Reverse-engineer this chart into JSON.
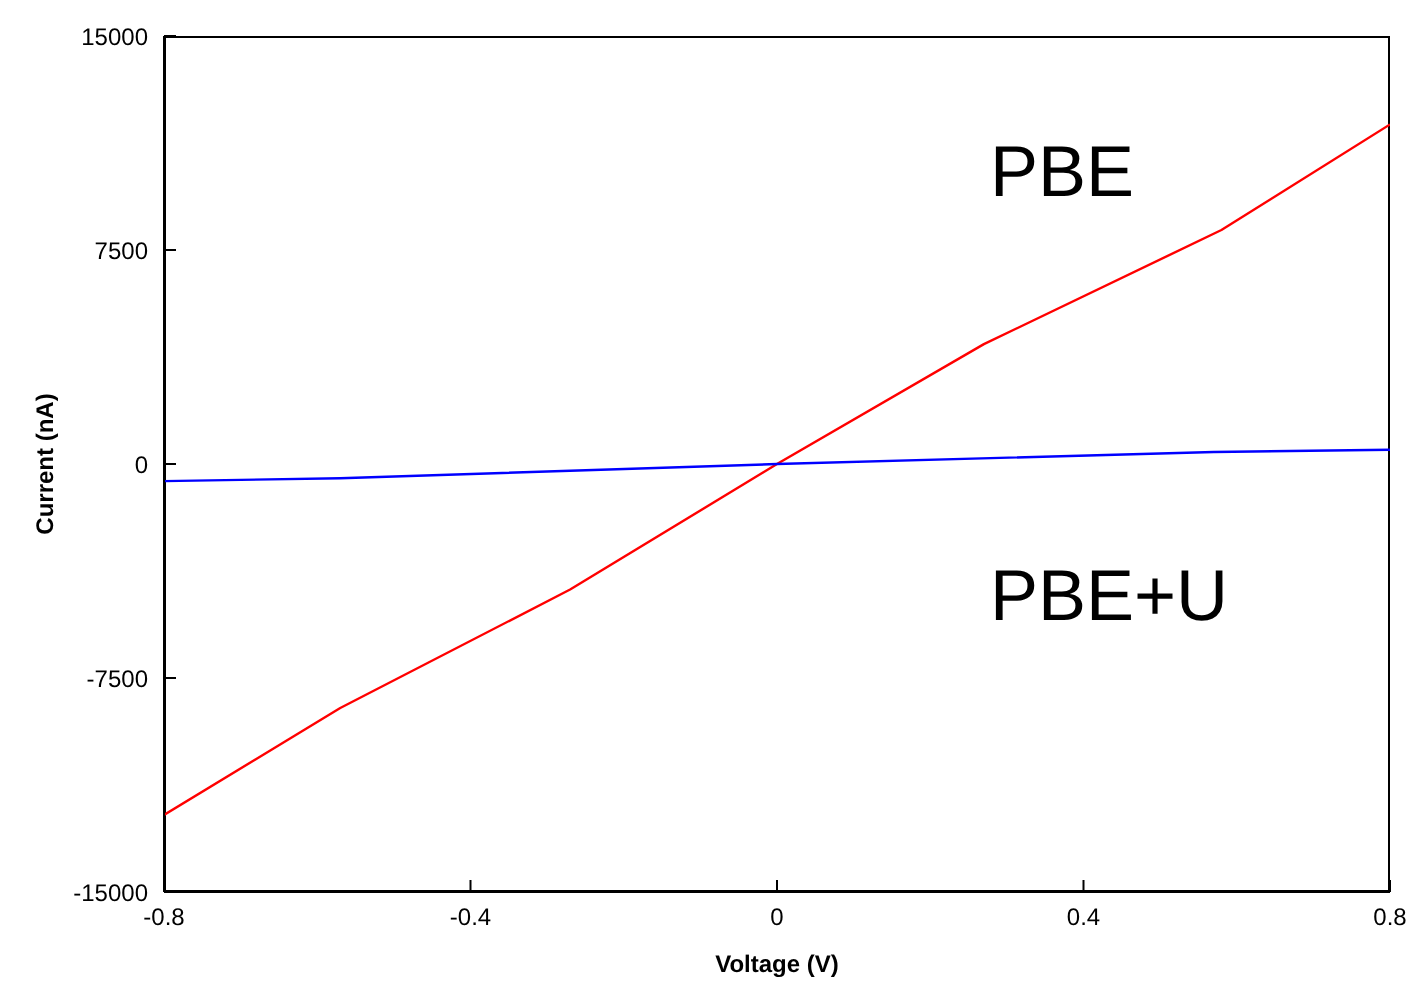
{
  "chart_data": {
    "type": "line",
    "xlabel": "Voltage (V)",
    "ylabel": "Current (nA)",
    "xlim": [
      -0.8,
      0.8
    ],
    "xticks": [
      -0.8,
      -0.4,
      0,
      0.4,
      0.8
    ],
    "ylim": [
      -15000,
      15000
    ],
    "yticks": [
      -15000,
      -7500,
      0,
      7500,
      15000
    ],
    "grid": false,
    "marker": "none",
    "line_style": "solid",
    "series": [
      {
        "color": "#ff0000",
        "x": [
          -0.8,
          -0.57,
          -0.27,
          0,
          0.27,
          0.58,
          0.8
        ],
        "values": [
          -12300,
          -8550,
          -4400,
          0,
          4200,
          8200,
          11900
        ]
      },
      {
        "color": "#0000ff",
        "x": [
          -0.8,
          -0.57,
          0,
          0.57,
          0.8
        ],
        "values": [
          -600,
          -500,
          0,
          420,
          500
        ]
      }
    ],
    "annotations": [
      "PBE",
      "PBE+U"
    ]
  }
}
